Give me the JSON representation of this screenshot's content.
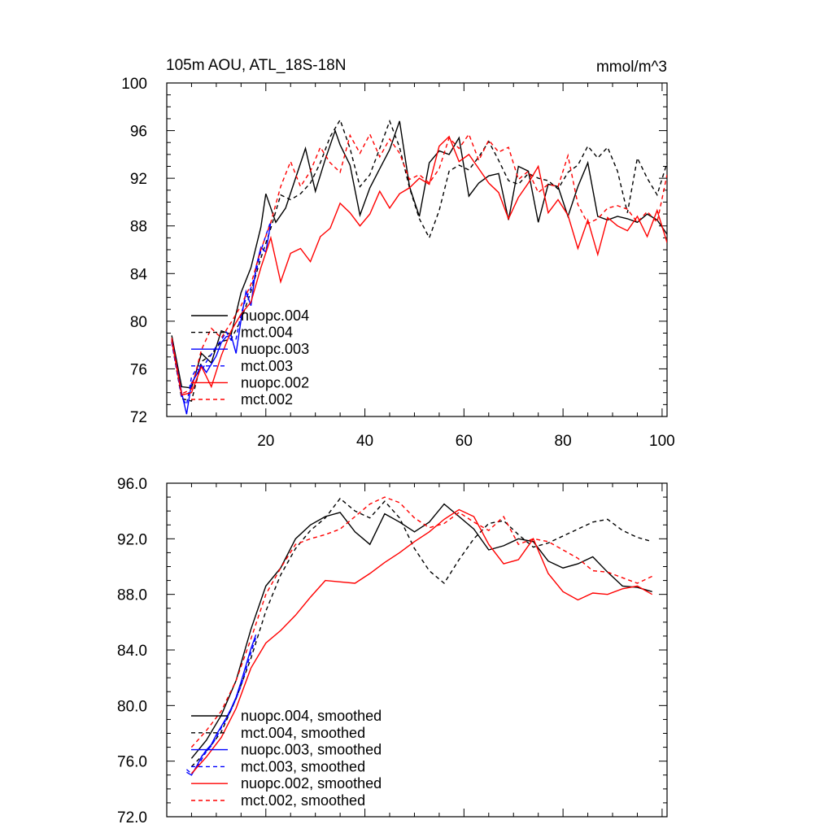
{
  "chart_data": [
    {
      "type": "line",
      "title": "105m AOU, ATL_18S-18N",
      "units": "mmol/m^3",
      "xlabel": "",
      "ylabel": "",
      "xlim": [
        0,
        101
      ],
      "ylim": [
        72,
        100
      ],
      "xticks": [
        20,
        40,
        60,
        80,
        100
      ],
      "xtick_labels": [
        "20",
        "40",
        "60",
        "80",
        "100"
      ],
      "yticks": [
        72,
        76,
        80,
        84,
        88,
        92,
        96,
        100
      ],
      "ytick_labels": [
        "72",
        "76",
        "80",
        "84",
        "88",
        "92",
        "96",
        "100"
      ],
      "legend_position": "lower-left",
      "series": [
        {
          "name": "nuopc.004",
          "color": "#000000",
          "dash": "solid",
          "x": [
            1,
            3,
            5,
            7,
            9,
            11,
            13,
            15,
            17,
            19,
            20,
            22,
            24,
            26,
            28,
            30,
            32,
            34,
            35,
            37,
            39,
            41,
            43,
            45,
            47,
            49,
            51,
            53,
            55,
            57,
            59,
            61,
            63,
            65,
            67,
            69,
            71,
            73,
            75,
            77,
            79,
            81,
            83,
            85,
            87,
            89,
            91,
            93,
            95,
            97,
            99,
            101
          ],
          "y": [
            78.8,
            74.5,
            74.4,
            77.3,
            76.5,
            79.2,
            78.9,
            82.4,
            84.5,
            87.9,
            90.7,
            88.3,
            89.5,
            92.0,
            94.5,
            90.9,
            93.6,
            96.0,
            94.8,
            93.1,
            88.9,
            91.2,
            92.8,
            94.4,
            96.8,
            91.3,
            88.8,
            93.3,
            94.3,
            94.0,
            95.4,
            90.5,
            91.6,
            92.2,
            92.4,
            88.5,
            93.0,
            92.6,
            88.3,
            91.5,
            91.3,
            88.8,
            91.3,
            93.3,
            88.8,
            88.5,
            88.8,
            88.6,
            88.3,
            89.0,
            88.5,
            87.3
          ]
        },
        {
          "name": "mct.004",
          "color": "#000000",
          "dash": "dashed",
          "x": [
            1,
            3,
            5,
            7,
            9,
            11,
            13,
            15,
            17,
            19,
            21,
            23,
            25,
            27,
            29,
            31,
            33,
            35,
            37,
            39,
            41,
            43,
            45,
            47,
            49,
            51,
            53,
            55,
            57,
            59,
            61,
            63,
            65,
            67,
            69,
            71,
            73,
            75,
            77,
            79,
            81,
            83,
            85,
            87,
            89,
            91,
            93,
            95,
            97,
            99,
            101
          ],
          "y": [
            78.3,
            73.5,
            73.3,
            76.6,
            77.2,
            78.3,
            78.5,
            80.1,
            82.5,
            85.3,
            87.8,
            90.6,
            90.2,
            90.7,
            91.6,
            93.3,
            95.5,
            96.9,
            94.5,
            91.3,
            92.3,
            94.5,
            96.8,
            94.6,
            91.2,
            88.6,
            87.0,
            89.3,
            92.6,
            93.1,
            92.7,
            93.8,
            95.1,
            93.5,
            91.8,
            91.5,
            92.4,
            92.0,
            91.8,
            91.1,
            92.5,
            93.1,
            94.7,
            93.7,
            94.6,
            92.6,
            89.1,
            93.7,
            92.0,
            90.6,
            93.3
          ]
        },
        {
          "name": "nuopc.003",
          "color": "#0000ff",
          "dash": "solid",
          "x": [
            1,
            3,
            4,
            5,
            6,
            7,
            8,
            9,
            10,
            11,
            12,
            13,
            14,
            15,
            16,
            17,
            18,
            19,
            20,
            21
          ],
          "y": [
            78.5,
            74.0,
            72.2,
            74.8,
            75.5,
            76.3,
            75.7,
            76.4,
            77.1,
            78.2,
            78.7,
            78.8,
            77.3,
            80.1,
            82.5,
            81.3,
            84.5,
            86.2,
            85.8,
            88.3
          ]
        },
        {
          "name": "mct.003",
          "color": "#0000ff",
          "dash": "dashed",
          "x": [
            1,
            3,
            4,
            5,
            6,
            7,
            8,
            9,
            10,
            11,
            12,
            13,
            14,
            15,
            16,
            17,
            18,
            19,
            20,
            21
          ],
          "y": [
            78.2,
            73.6,
            73.0,
            75.3,
            76.0,
            75.8,
            76.6,
            77.2,
            77.9,
            78.4,
            79.1,
            78.4,
            78.5,
            80.6,
            81.9,
            82.8,
            84.1,
            85.9,
            87.2,
            88.4
          ]
        },
        {
          "name": "nuopc.002",
          "color": "#ff0000",
          "dash": "solid",
          "x": [
            1,
            3,
            5,
            7,
            9,
            11,
            13,
            15,
            17,
            19,
            21,
            23,
            25,
            27,
            29,
            31,
            33,
            35,
            37,
            39,
            41,
            43,
            45,
            47,
            49,
            51,
            53,
            55,
            57,
            59,
            61,
            63,
            65,
            67,
            69,
            71,
            73,
            75,
            77,
            79,
            81,
            83,
            85,
            87,
            89,
            91,
            93,
            95,
            97,
            99,
            101
          ],
          "y": [
            78.4,
            73.8,
            74.0,
            76.2,
            74.5,
            77.1,
            79.2,
            80.6,
            81.6,
            84.5,
            87.0,
            83.3,
            85.7,
            86.1,
            85.0,
            87.1,
            87.8,
            89.9,
            89.1,
            88.0,
            89.0,
            90.9,
            89.5,
            90.7,
            91.2,
            92.0,
            91.5,
            94.7,
            95.5,
            93.4,
            94.0,
            92.8,
            91.6,
            90.8,
            88.6,
            90.4,
            91.6,
            93.0,
            89.1,
            90.2,
            88.9,
            86.1,
            88.5,
            85.6,
            88.7,
            88.0,
            87.6,
            88.8,
            87.1,
            89.3,
            86.6
          ]
        },
        {
          "name": "mct.002",
          "color": "#ff0000",
          "dash": "dashed",
          "x": [
            1,
            3,
            5,
            7,
            9,
            11,
            13,
            15,
            17,
            19,
            21,
            23,
            25,
            27,
            29,
            31,
            33,
            35,
            37,
            39,
            41,
            43,
            45,
            47,
            49,
            51,
            53,
            55,
            57,
            59,
            61,
            63,
            65,
            67,
            69,
            71,
            73,
            75,
            77,
            79,
            81,
            83,
            85,
            87,
            89,
            91,
            93,
            95,
            97,
            99,
            101
          ],
          "y": [
            78.6,
            73.9,
            74.3,
            77.6,
            79.4,
            78.6,
            79.9,
            81.3,
            83.1,
            86.0,
            88.3,
            91.3,
            93.4,
            91.3,
            92.6,
            94.6,
            93.3,
            92.5,
            95.6,
            94.1,
            95.7,
            93.8,
            95.3,
            94.1,
            91.9,
            92.3,
            91.6,
            92.8,
            95.4,
            94.5,
            95.7,
            93.5,
            95.2,
            94.2,
            94.6,
            91.9,
            92.6,
            90.8,
            91.5,
            91.3,
            93.9,
            89.8,
            88.2,
            88.6,
            89.5,
            89.7,
            89.4,
            88.3,
            89.2,
            88.3,
            92.3
          ]
        }
      ]
    },
    {
      "type": "line",
      "title": "",
      "xlabel": "",
      "ylabel": "",
      "xlim": [
        0,
        101
      ],
      "ylim": [
        72.0,
        96.0
      ],
      "xticks": [
        20,
        40,
        60,
        80,
        100
      ],
      "yticks": [
        72.0,
        76.0,
        80.0,
        84.0,
        88.0,
        92.0,
        96.0
      ],
      "ytick_labels": [
        "72.0",
        "76.0",
        "80.0",
        "84.0",
        "88.0",
        "92.0",
        "96.0"
      ],
      "legend_position": "lower-left",
      "series": [
        {
          "name": "nuopc.004, smoothed",
          "color": "#000000",
          "dash": "solid",
          "x": [
            5,
            8,
            11,
            14,
            17,
            20,
            23,
            26,
            29,
            32,
            35,
            38,
            41,
            44,
            47,
            50,
            53,
            56,
            59,
            62,
            65,
            68,
            71,
            74,
            77,
            80,
            83,
            86,
            89,
            92,
            95,
            98
          ],
          "y": [
            76.2,
            77.5,
            79.3,
            81.8,
            85.5,
            88.6,
            89.9,
            92.0,
            93.0,
            93.6,
            93.9,
            92.5,
            91.6,
            93.8,
            93.2,
            92.5,
            93.2,
            94.5,
            93.6,
            92.7,
            91.2,
            91.5,
            92.0,
            91.8,
            90.4,
            89.9,
            90.2,
            90.7,
            89.6,
            88.6,
            88.5,
            88.2
          ]
        },
        {
          "name": "mct.004, smoothed",
          "color": "#000000",
          "dash": "dashed",
          "x": [
            5,
            8,
            11,
            14,
            17,
            20,
            23,
            26,
            29,
            32,
            35,
            38,
            41,
            44,
            47,
            50,
            53,
            56,
            59,
            62,
            65,
            68,
            71,
            74,
            77,
            80,
            83,
            86,
            89,
            92,
            95,
            98
          ],
          "y": [
            75.6,
            76.7,
            78.1,
            80.5,
            83.4,
            86.8,
            89.4,
            91.3,
            92.6,
            93.5,
            94.9,
            94.0,
            93.5,
            94.7,
            93.5,
            91.3,
            89.7,
            88.8,
            90.5,
            92.0,
            93.1,
            93.3,
            92.3,
            91.4,
            91.7,
            92.2,
            92.7,
            93.2,
            93.4,
            92.6,
            92.1,
            91.8
          ]
        },
        {
          "name": "nuopc.003, smoothed",
          "color": "#0000ff",
          "dash": "solid",
          "x": [
            4,
            5,
            6,
            7,
            8,
            9,
            10,
            11,
            12,
            13,
            14,
            15,
            16,
            17,
            18
          ],
          "y": [
            75.2,
            75.0,
            75.6,
            76.3,
            76.8,
            77.2,
            77.9,
            78.5,
            79.1,
            79.8,
            80.6,
            81.7,
            82.9,
            84.1,
            85.1
          ]
        },
        {
          "name": "mct.003, smoothed",
          "color": "#0000ff",
          "dash": "dashed",
          "x": [
            4,
            5,
            6,
            7,
            8,
            9,
            10,
            11,
            12,
            13,
            14,
            15,
            16,
            17,
            18
          ],
          "y": [
            75.4,
            75.1,
            75.5,
            76.1,
            76.7,
            77.1,
            77.7,
            78.4,
            79.0,
            79.7,
            80.5,
            81.4,
            82.6,
            83.8,
            84.9
          ]
        },
        {
          "name": "nuopc.002, smoothed",
          "color": "#ff0000",
          "dash": "solid",
          "x": [
            5,
            8,
            11,
            14,
            17,
            20,
            23,
            26,
            29,
            32,
            35,
            38,
            41,
            44,
            47,
            50,
            53,
            56,
            59,
            62,
            65,
            68,
            71,
            74,
            77,
            80,
            83,
            86,
            89,
            92,
            95,
            98
          ],
          "y": [
            75.1,
            76.3,
            77.7,
            79.8,
            82.7,
            84.5,
            85.4,
            86.5,
            87.8,
            89.0,
            88.9,
            88.8,
            89.5,
            90.3,
            91.0,
            91.8,
            92.5,
            93.4,
            94.1,
            93.6,
            91.6,
            90.2,
            90.5,
            92.0,
            89.5,
            88.2,
            87.6,
            88.1,
            88.0,
            88.4,
            88.6,
            88.0
          ]
        },
        {
          "name": "mct.002, smoothed",
          "color": "#ff0000",
          "dash": "dashed",
          "x": [
            5,
            8,
            11,
            14,
            17,
            20,
            23,
            26,
            29,
            32,
            35,
            38,
            41,
            44,
            47,
            50,
            53,
            56,
            59,
            62,
            65,
            68,
            71,
            74,
            77,
            80,
            83,
            86,
            89,
            92,
            95,
            98
          ],
          "y": [
            77.0,
            78.2,
            79.6,
            81.8,
            84.8,
            88.0,
            89.9,
            91.6,
            92.0,
            92.3,
            92.7,
            93.6,
            94.5,
            95.0,
            94.6,
            93.5,
            92.8,
            93.1,
            93.9,
            93.2,
            92.6,
            93.6,
            91.6,
            92.0,
            91.8,
            91.2,
            90.6,
            89.7,
            89.6,
            89.2,
            88.8,
            89.3
          ]
        }
      ]
    }
  ]
}
